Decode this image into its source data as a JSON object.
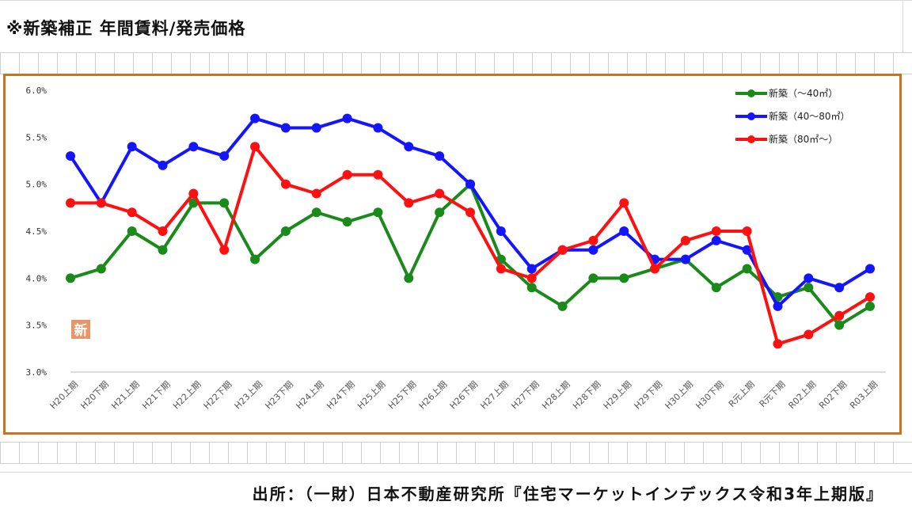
{
  "page": {
    "title": "※新築補正 年間賃料/発売価格",
    "source": "出所：（一財）日本不動産研究所『住宅マーケットインデックス令和3年上期版』",
    "badge": "新"
  },
  "chart_data": {
    "type": "line",
    "title": "",
    "xlabel": "",
    "ylabel": "",
    "ylim": [
      3.0,
      6.0
    ],
    "y_ticks": [
      "3.0%",
      "3.5%",
      "4.0%",
      "4.5%",
      "5.0%",
      "5.5%",
      "6.0%"
    ],
    "legend_position": "top-right",
    "grid": "horizontal baseline only",
    "categories": [
      "H20上期",
      "H20下期",
      "H21上期",
      "H21下期",
      "H22上期",
      "H22下期",
      "H23上期",
      "H23下期",
      "H24上期",
      "H24下期",
      "H25上期",
      "H25下期",
      "H26上期",
      "H26下期",
      "H27上期",
      "H27下期",
      "H28上期",
      "H28下期",
      "H29上期",
      "H29下期",
      "H30上期",
      "H30下期",
      "R元上期",
      "R元下期",
      "R02上期",
      "R02下期",
      "R03上期"
    ],
    "series": [
      {
        "name": "新築（～40㎡）",
        "color": "#1a8a1a",
        "values": [
          4.0,
          4.1,
          4.5,
          4.3,
          4.8,
          4.8,
          4.2,
          4.5,
          4.7,
          4.6,
          4.7,
          4.0,
          4.7,
          5.0,
          4.2,
          3.9,
          3.7,
          4.0,
          4.0,
          4.1,
          4.2,
          3.9,
          4.1,
          3.8,
          3.9,
          3.5,
          3.7
        ]
      },
      {
        "name": "新築（40～80㎡）",
        "color": "#1414ff",
        "values": [
          5.3,
          4.8,
          5.4,
          5.2,
          5.4,
          5.3,
          5.7,
          5.6,
          5.6,
          5.7,
          5.6,
          5.4,
          5.3,
          5.0,
          4.5,
          4.1,
          4.3,
          4.3,
          4.5,
          4.2,
          4.2,
          4.4,
          4.3,
          3.7,
          4.0,
          3.9,
          4.1
        ]
      },
      {
        "name": "新築（80㎡～）",
        "color": "#ff1010",
        "values": [
          4.8,
          4.8,
          4.7,
          4.5,
          4.9,
          4.3,
          5.4,
          5.0,
          4.9,
          5.1,
          5.1,
          4.8,
          4.9,
          4.7,
          4.1,
          4.0,
          4.3,
          4.4,
          4.8,
          4.1,
          4.4,
          4.5,
          4.5,
          3.3,
          3.4,
          3.6,
          3.8
        ]
      }
    ]
  }
}
